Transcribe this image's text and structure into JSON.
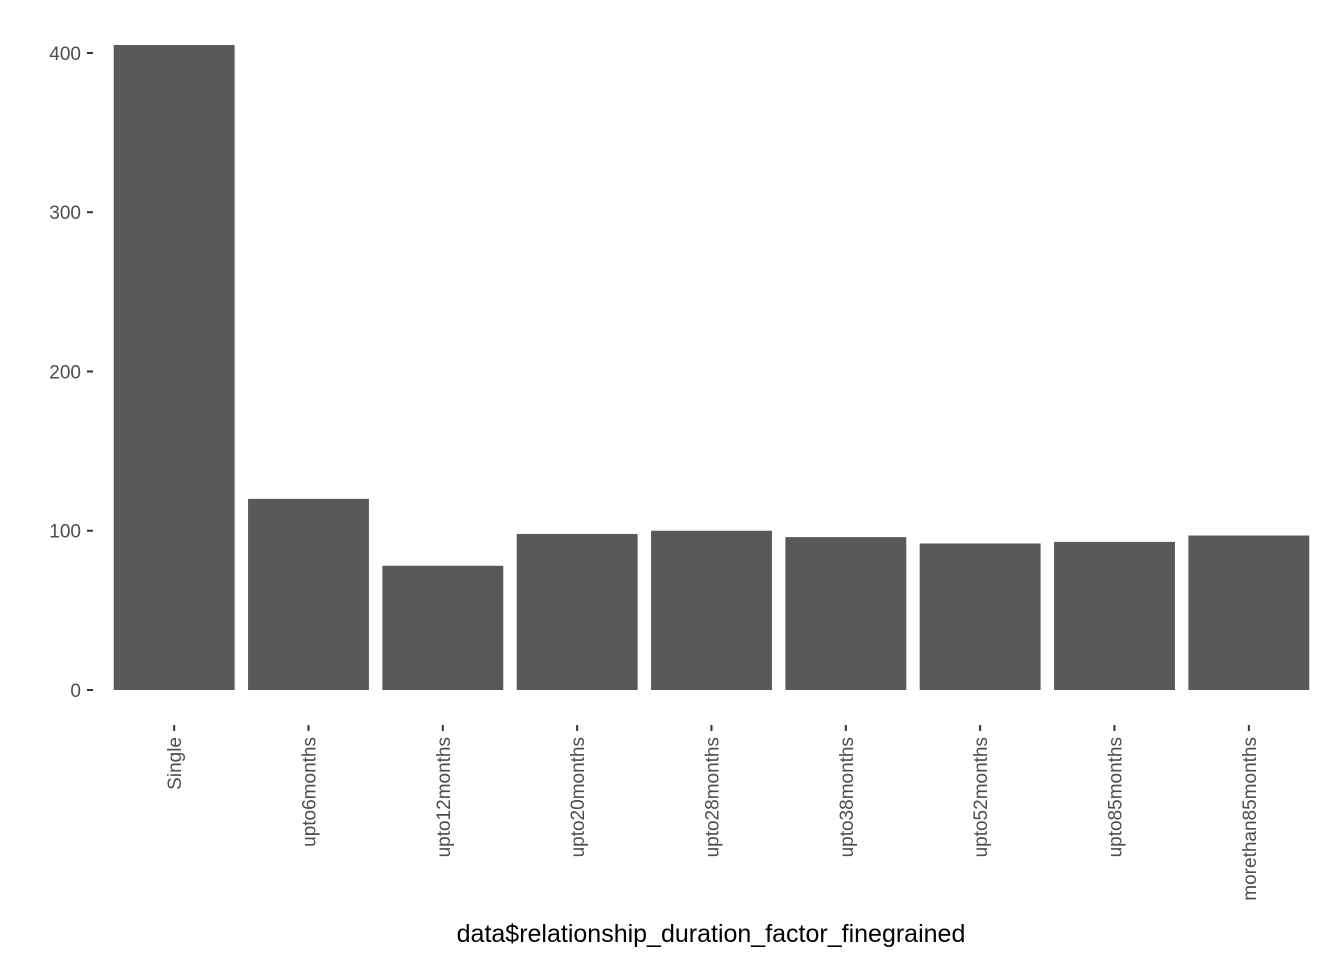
{
  "chart_data": {
    "type": "bar",
    "title": "",
    "xlabel": "data$relationship_duration_factor_finegrained",
    "ylabel": "",
    "categories": [
      "Single",
      "upto6months",
      "upto12months",
      "upto20months",
      "upto28months",
      "upto38months",
      "upto52months",
      "upto85months",
      "morethan85months"
    ],
    "values": [
      405,
      120,
      78,
      98,
      100,
      96,
      92,
      93,
      97
    ],
    "ylim": [
      0,
      405
    ],
    "yticks": [
      "0",
      "100",
      "200",
      "300",
      "400"
    ],
    "grid": false,
    "legend": "none",
    "bar_color": "#595959"
  }
}
